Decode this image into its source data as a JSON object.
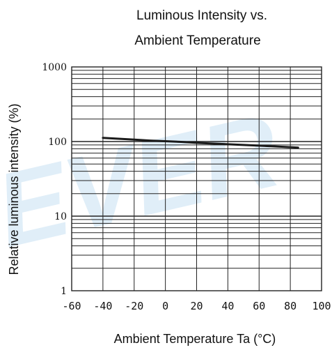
{
  "chart_data": {
    "type": "line",
    "title": [
      "Luminous Intensity vs.",
      "Ambient Temperature"
    ],
    "xlabel": "Ambient Temperature Ta (°C)",
    "ylabel": "Relative luminous intensity  (%)",
    "x_tick_labels": [
      "-60",
      "-40",
      "-20",
      "0",
      "20",
      "40",
      "60",
      "80",
      "100"
    ],
    "y_tick_labels": [
      "1",
      "10",
      "100",
      "1000"
    ],
    "xlim": [
      -60,
      100
    ],
    "ylim": [
      1,
      1000
    ],
    "y_scale": "log",
    "grid": true,
    "legend": "none",
    "watermark": "EVER",
    "colors": {
      "line": "#1a1a1a",
      "grid": "#222222",
      "watermark": "#d6e9f6"
    },
    "series": [
      {
        "x": [
          -40,
          -30,
          -20,
          -10,
          0,
          10,
          20,
          30,
          40,
          50,
          60,
          70,
          80,
          85
        ],
        "y": [
          112,
          109,
          106,
          103,
          101,
          99,
          96,
          94,
          92,
          90,
          88,
          86,
          84,
          83
        ]
      }
    ]
  }
}
